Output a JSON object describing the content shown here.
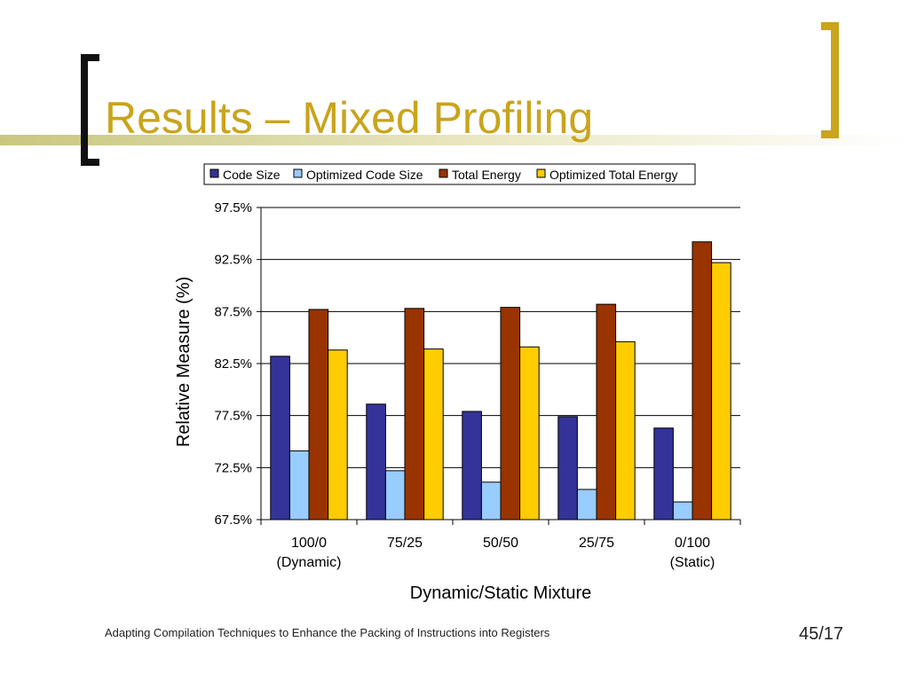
{
  "slide": {
    "title": "Results – Mixed Profiling",
    "footer": "Adapting Compilation Techniques to Enhance the Packing of Instructions into Registers",
    "page_number": "45/17",
    "accent_color": "#c9a41c",
    "band_color": "#d3d08a"
  },
  "chart_data": {
    "type": "bar",
    "title": "",
    "xlabel": "Dynamic/Static Mixture",
    "ylabel": "Relative Measure (%)",
    "categories": [
      [
        "100/0",
        "(Dynamic)"
      ],
      [
        "75/25",
        ""
      ],
      [
        "50/50",
        ""
      ],
      [
        "25/75",
        ""
      ],
      [
        "0/100",
        "(Static)"
      ]
    ],
    "ylim": [
      67.5,
      97.5
    ],
    "yticks": [
      67.5,
      72.5,
      77.5,
      82.5,
      87.5,
      92.5,
      97.5
    ],
    "ytick_labels": [
      "67.5%",
      "72.5%",
      "77.5%",
      "82.5%",
      "87.5%",
      "92.5%",
      "97.5%"
    ],
    "grid": true,
    "legend_position": "top",
    "series": [
      {
        "name": "Code Size",
        "color": "#333399",
        "values": [
          83.2,
          78.6,
          77.9,
          77.4,
          76.3
        ]
      },
      {
        "name": "Optimized Code Size",
        "color": "#99ccff",
        "values": [
          74.1,
          72.2,
          71.1,
          70.4,
          69.2
        ]
      },
      {
        "name": "Total Energy",
        "color": "#993300",
        "values": [
          87.7,
          87.8,
          87.9,
          88.2,
          94.2
        ]
      },
      {
        "name": "Optimized Total Energy",
        "color": "#ffcc00",
        "values": [
          83.8,
          83.9,
          84.1,
          84.6,
          92.2
        ]
      }
    ]
  }
}
